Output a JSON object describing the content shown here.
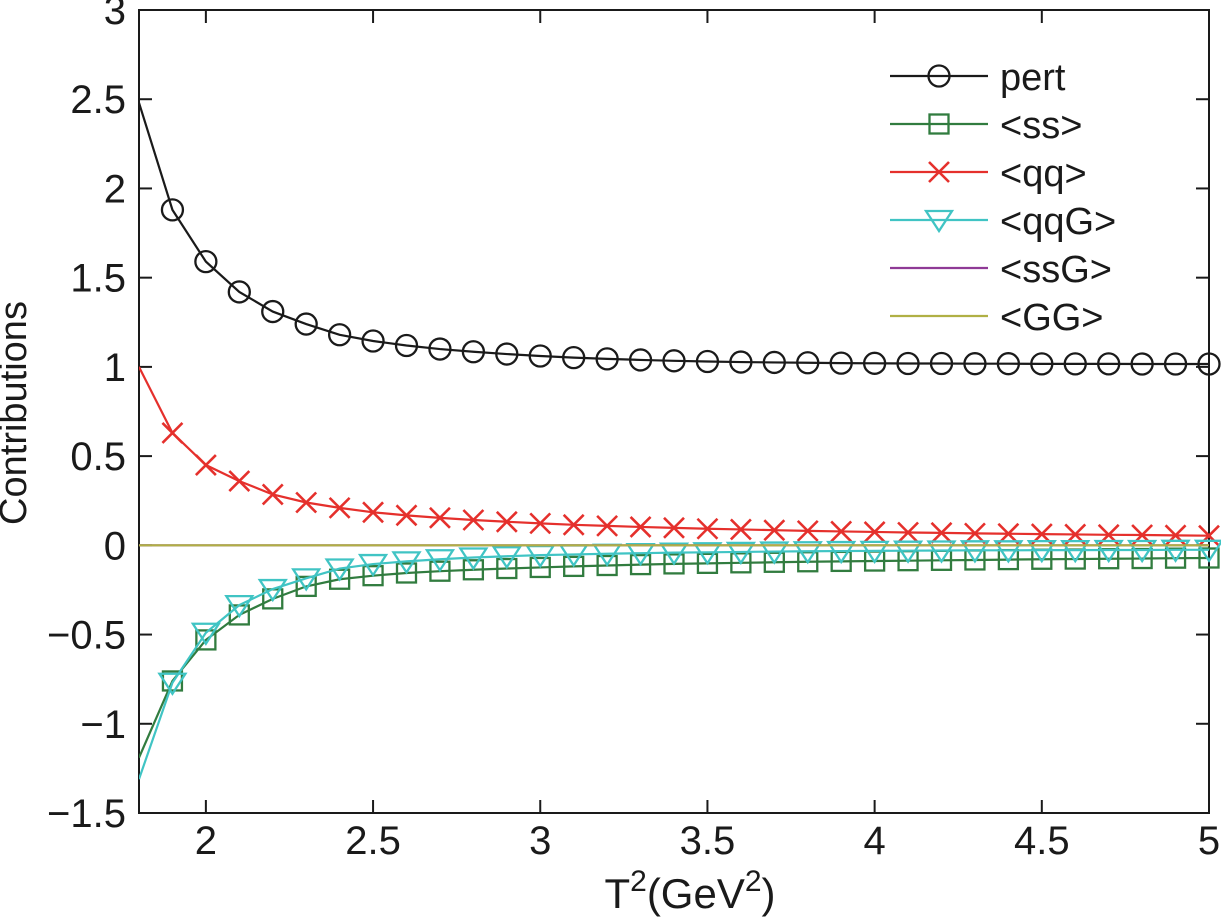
{
  "figure": {
    "background": "#ffffff",
    "axis_color": "#1a1a1a",
    "text_color": "#1a1a1a"
  },
  "chart_data": {
    "type": "line",
    "title": "",
    "xlabel": "T²(GeV²)",
    "xlabel_parts": [
      {
        "text": "T",
        "sup": false
      },
      {
        "text": "2",
        "sup": true
      },
      {
        "text": "(GeV",
        "sup": false
      },
      {
        "text": "2",
        "sup": true
      },
      {
        "text": ")",
        "sup": false
      }
    ],
    "ylabel": "Contributions",
    "xlim": [
      1.8,
      5.0
    ],
    "ylim": [
      -1.5,
      3.0
    ],
    "grid": false,
    "box": true,
    "legend_position": "northeast",
    "xticks": {
      "values": [
        2,
        2.5,
        3,
        3.5,
        4,
        4.5,
        5
      ],
      "labels": [
        "2",
        "2.5",
        "3",
        "3.5",
        "4",
        "4.5",
        "5"
      ]
    },
    "yticks": {
      "values": [
        3,
        2.5,
        2,
        1.5,
        1,
        0.5,
        0,
        -0.5,
        -1,
        -1.5
      ],
      "labels": [
        "3",
        "2.5",
        "2",
        "1.5",
        "1",
        "0.5",
        "0",
        "−0.5",
        "−1",
        "−1.5"
      ]
    },
    "x": [
      1.8,
      1.9,
      2.0,
      2.1,
      2.2,
      2.3,
      2.4,
      2.5,
      2.6,
      2.7,
      2.8,
      2.9,
      3.0,
      3.1,
      3.2,
      3.3,
      3.4,
      3.5,
      3.6,
      3.7,
      3.8,
      3.9,
      4.0,
      4.1,
      4.2,
      4.3,
      4.4,
      4.5,
      4.6,
      4.7,
      4.8,
      4.9,
      5.0
    ],
    "series": [
      {
        "name": "pert",
        "label": "pert",
        "color": "#1a1a1a",
        "marker": "circle",
        "values": [
          2.48,
          1.88,
          1.59,
          1.42,
          1.31,
          1.24,
          1.18,
          1.145,
          1.12,
          1.1,
          1.085,
          1.072,
          1.061,
          1.052,
          1.045,
          1.039,
          1.034,
          1.03,
          1.027,
          1.025,
          1.023,
          1.021,
          1.02,
          1.019,
          1.019,
          1.018,
          1.018,
          1.017,
          1.017,
          1.017,
          1.016,
          1.016,
          1.016
        ]
      },
      {
        "name": "ss",
        "label": "<ss>",
        "color": "#317c3f",
        "marker": "square",
        "values": [
          -1.19,
          -0.76,
          -0.53,
          -0.39,
          -0.3,
          -0.23,
          -0.19,
          -0.17,
          -0.155,
          -0.145,
          -0.137,
          -0.13,
          -0.124,
          -0.118,
          -0.113,
          -0.108,
          -0.104,
          -0.101,
          -0.098,
          -0.095,
          -0.092,
          -0.09,
          -0.088,
          -0.086,
          -0.084,
          -0.082,
          -0.08,
          -0.078,
          -0.077,
          -0.075,
          -0.074,
          -0.072,
          -0.071
        ]
      },
      {
        "name": "qq",
        "label": "<qq>",
        "color": "#e5302c",
        "marker": "x",
        "values": [
          1.0,
          0.63,
          0.45,
          0.36,
          0.285,
          0.24,
          0.21,
          0.185,
          0.168,
          0.154,
          0.142,
          0.132,
          0.123,
          0.115,
          0.109,
          0.103,
          0.098,
          0.093,
          0.089,
          0.085,
          0.081,
          0.078,
          0.075,
          0.072,
          0.07,
          0.067,
          0.065,
          0.063,
          0.061,
          0.059,
          0.058,
          0.056,
          0.054
        ]
      },
      {
        "name": "qqG",
        "label": "<qqG>",
        "color": "#40c4c4",
        "marker": "triangle-down",
        "values": [
          -1.31,
          -0.77,
          -0.49,
          -0.335,
          -0.245,
          -0.185,
          -0.13,
          -0.105,
          -0.09,
          -0.078,
          -0.068,
          -0.061,
          -0.055,
          -0.051,
          -0.047,
          -0.044,
          -0.041,
          -0.039,
          -0.037,
          -0.035,
          -0.033,
          -0.032,
          -0.031,
          -0.03,
          -0.029,
          -0.028,
          -0.028,
          -0.027,
          -0.027,
          -0.026,
          -0.026,
          -0.025,
          -0.025
        ]
      },
      {
        "name": "ssG",
        "label": "<ssG>",
        "color": "#8f3a96",
        "marker": "none",
        "values": [
          0,
          0,
          0,
          0,
          0,
          0,
          0,
          0,
          0,
          0,
          0,
          0,
          0,
          0,
          0,
          0,
          0,
          0,
          0,
          0,
          0,
          0,
          0,
          0,
          0,
          0,
          0,
          0,
          0,
          0,
          0,
          0,
          0
        ]
      },
      {
        "name": "GG",
        "label": "<GG>",
        "color": "#b0b044",
        "marker": "none",
        "values": [
          0,
          0,
          0,
          0,
          0,
          0,
          0,
          0,
          0,
          0,
          0,
          0,
          0,
          0,
          0,
          0,
          0,
          0,
          0,
          0,
          0,
          0,
          0,
          0,
          0,
          0,
          0,
          0,
          0,
          0,
          0,
          0,
          0
        ]
      }
    ]
  }
}
